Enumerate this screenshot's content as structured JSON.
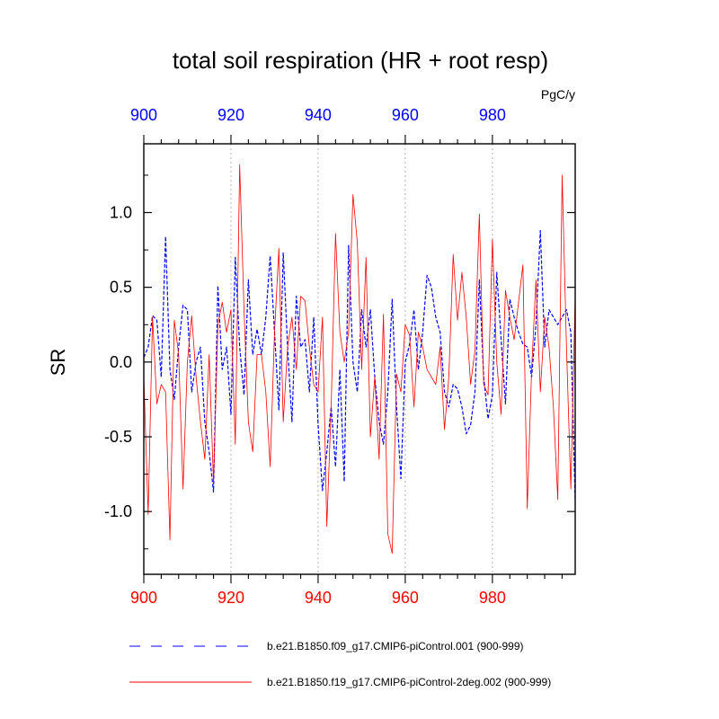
{
  "chart_data": {
    "type": "line",
    "title": "total soil respiration (HR + root resp)",
    "units_label": "PgC/y",
    "ylabel": "SR",
    "xlabel": "",
    "xlim": [
      900,
      999
    ],
    "ylim": [
      -1.42,
      1.46
    ],
    "x_ticks": [
      900,
      920,
      940,
      960,
      980
    ],
    "x_tick_labels": [
      "900",
      "920",
      "940",
      "960",
      "980"
    ],
    "y_ticks": [
      -1.0,
      -0.5,
      0.0,
      0.5,
      1.0
    ],
    "y_tick_labels": [
      "-1.0",
      "-0.5",
      "0.0",
      "0.5",
      "1.0"
    ],
    "top_axis_color": "#0000ff",
    "bottom_axis_color": "#ff0000",
    "vertical_gridlines_at": [
      920,
      940,
      960,
      980
    ],
    "series": [
      {
        "name": "b.e21.B1850.f09_g17.CMIP6-piControl.001 (900-999)",
        "color": "#0000ff",
        "style": "dashed",
        "x_start": 900,
        "values": [
          0.03,
          0.1,
          0.31,
          0.28,
          -0.1,
          0.84,
          -0.05,
          -0.25,
          0.1,
          0.38,
          0.35,
          -0.2,
          0.0,
          0.1,
          -0.4,
          -0.6,
          -0.87,
          0.51,
          -0.05,
          0.1,
          -0.35,
          0.7,
          0.1,
          -0.22,
          0.55,
          0.05,
          0.22,
          0.05,
          0.3,
          0.71,
          0.2,
          -0.32,
          0.73,
          0.1,
          -0.4,
          0.44,
          0.1,
          0.15,
          -0.2,
          0.3,
          -0.42,
          -0.86,
          -0.6,
          -0.3,
          -0.7,
          -0.05,
          -0.8,
          0.78,
          0.0,
          -0.2,
          0.35,
          0.1,
          0.35,
          -0.1,
          -0.4,
          -0.55,
          -0.2,
          0.42,
          -0.3,
          -0.78,
          0.0,
          0.12,
          0.35,
          -0.05,
          0.2,
          0.58,
          0.5,
          0.3,
          0.2,
          -0.2,
          -0.3,
          -0.15,
          -0.18,
          -0.3,
          -0.48,
          -0.42,
          -0.2,
          0.55,
          -0.1,
          -0.38,
          -0.22,
          0.6,
          0.15,
          -0.28,
          0.42,
          0.3,
          0.2,
          0.12,
          0.1,
          -0.1,
          0.25,
          0.88,
          0.1,
          0.35,
          0.3,
          0.25,
          0.3,
          0.35,
          0.2,
          -0.93
        ]
      },
      {
        "name": "b.e21.B1850.f19_g17.CMIP6-piControl-2deg.002 (900-999)",
        "color": "#ff0000",
        "style": "solid",
        "x_start": 900,
        "values": [
          -0.1,
          -1.02,
          0.3,
          -0.28,
          -0.15,
          -0.2,
          -1.19,
          0.28,
          0.05,
          -0.85,
          0.0,
          0.31,
          -0.1,
          -0.4,
          -0.65,
          0.05,
          -0.82,
          0.25,
          0.4,
          0.2,
          0.35,
          -0.55,
          1.32,
          0.35,
          -0.4,
          -0.6,
          0.05,
          0.05,
          -0.2,
          -0.7,
          0.2,
          0.76,
          -0.4,
          0.1,
          0.3,
          -0.05,
          0.44,
          0.41,
          0.1,
          -0.15,
          -0.2,
          0.3,
          -1.1,
          -0.3,
          0.86,
          0.2,
          0.0,
          0.2,
          1.12,
          0.8,
          -0.05,
          0.7,
          -0.5,
          -0.1,
          -0.65,
          0.32,
          -1.15,
          -1.28,
          -0.08,
          -0.2,
          0.25,
          0.18,
          -0.3,
          0.2,
          0.1,
          -0.05,
          -0.1,
          -0.15,
          0.1,
          -0.45,
          -0.1,
          0.72,
          0.28,
          0.6,
          0.3,
          -0.15,
          0.08,
          0.99,
          -0.15,
          -0.22,
          0.82,
          0.0,
          -0.35,
          0.48,
          0.3,
          0.15,
          0.4,
          0.65,
          -0.98,
          -0.05,
          0.55,
          -0.2,
          0.3,
          0.1,
          -0.3,
          -0.92,
          1.25,
          0.1,
          -0.85,
          0.45
        ]
      }
    ]
  }
}
